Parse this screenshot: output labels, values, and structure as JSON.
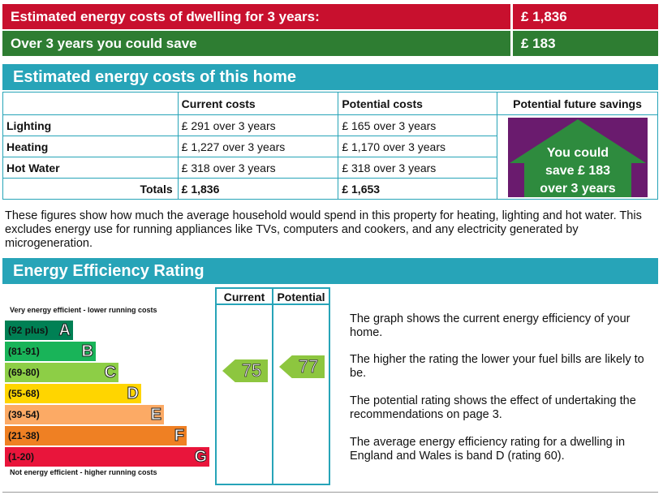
{
  "summary": {
    "cost_label": "Estimated energy costs of dwelling for 3 years:",
    "cost_value": "£ 1,836",
    "save_label": "Over 3 years you could save",
    "save_value": "£ 183"
  },
  "costs_section": {
    "title": "Estimated energy costs of this home",
    "headers": [
      "Current costs",
      "Potential costs",
      "Potential future savings"
    ],
    "rows": [
      {
        "label": "Lighting",
        "current": "£ 291 over 3 years",
        "potential": "£ 165 over 3 years"
      },
      {
        "label": "Heating",
        "current": "£ 1,227 over 3 years",
        "potential": "£ 1,170 over 3 years"
      },
      {
        "label": "Hot Water",
        "current": "£ 318 over 3 years",
        "potential": "£ 318 over 3 years"
      }
    ],
    "totals_label": "Totals",
    "totals_current": "£ 1,836",
    "totals_potential": "£ 1,653",
    "savings_badge": [
      "You could",
      "save £ 183",
      "over 3 years"
    ],
    "savings_colors": {
      "background": "#6a1b6e",
      "house": "#2e8b3e"
    }
  },
  "note": "These figures show how much the average household would spend in this property for heating, lighting and hot water. This excludes energy use for running appliances like TVs, computers and cookers, and any electricity generated by microgeneration.",
  "rating_section": {
    "title": "Energy Efficiency Rating",
    "top_label": "Very energy efficient - lower running costs",
    "bottom_label": "Not energy efficient - higher running costs",
    "column_headers": [
      "Current",
      "Potential"
    ],
    "bands": [
      {
        "range": "(92 plus)",
        "letter": "A",
        "color": "#008054"
      },
      {
        "range": "(81-91)",
        "letter": "B",
        "color": "#19b459"
      },
      {
        "range": "(69-80)",
        "letter": "C",
        "color": "#8dce46"
      },
      {
        "range": "(55-68)",
        "letter": "D",
        "color": "#ffd500"
      },
      {
        "range": "(39-54)",
        "letter": "E",
        "color": "#fcaa65"
      },
      {
        "range": "(21-38)",
        "letter": "F",
        "color": "#ef8023"
      },
      {
        "range": "(1-20)",
        "letter": "G",
        "color": "#e9153b"
      }
    ],
    "current_rating": 75,
    "potential_rating": 77,
    "descriptions": [
      "The graph shows the current energy efficiency of your home.",
      "The higher the rating the lower your fuel bills are likely to be.",
      "The potential rating shows the effect of undertaking the recommendations on page 3.",
      "The average energy efficiency rating for a dwelling in England and Wales is band D (rating 60)."
    ]
  }
}
